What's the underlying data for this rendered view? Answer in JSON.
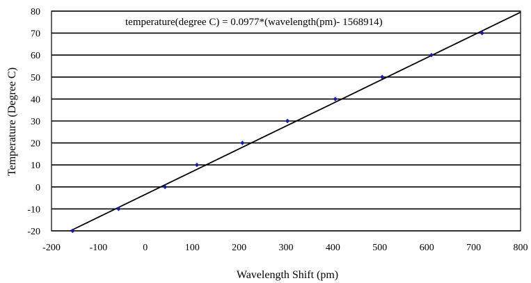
{
  "chart_data": {
    "type": "scatter",
    "title": "",
    "xlabel": "Wavelength Shift (pm)",
    "ylabel": "Temperature (Degree C)",
    "xlim": [
      -200,
      800
    ],
    "ylim": [
      -20,
      80
    ],
    "xticks": [
      "-200",
      "-100",
      "0",
      "100",
      "200",
      "300",
      "400",
      "500",
      "600",
      "700",
      "800"
    ],
    "yticks": [
      "-20",
      "-10",
      "0",
      "10",
      "20",
      "30",
      "40",
      "50",
      "60",
      "70",
      "80"
    ],
    "grid": "horizontal",
    "annotation": "temperature(degree C) = 0.0977*(wavelength(pm)- 1568914)",
    "series": [
      {
        "points": [
          {
            "x": -155,
            "y": -20
          },
          {
            "x": -57,
            "y": -10
          },
          {
            "x": 42,
            "y": 0
          },
          {
            "x": 110,
            "y": 10
          },
          {
            "x": 207,
            "y": 20
          },
          {
            "x": 303,
            "y": 30
          },
          {
            "x": 405,
            "y": 40
          },
          {
            "x": 505,
            "y": 50
          },
          {
            "x": 610,
            "y": 60
          },
          {
            "x": 718,
            "y": 70
          }
        ],
        "color": "#1a1aa6"
      }
    ],
    "trendline": {
      "x": [
        -160,
        800
      ],
      "y": [
        -20,
        79.5
      ],
      "color": "#000000"
    }
  }
}
